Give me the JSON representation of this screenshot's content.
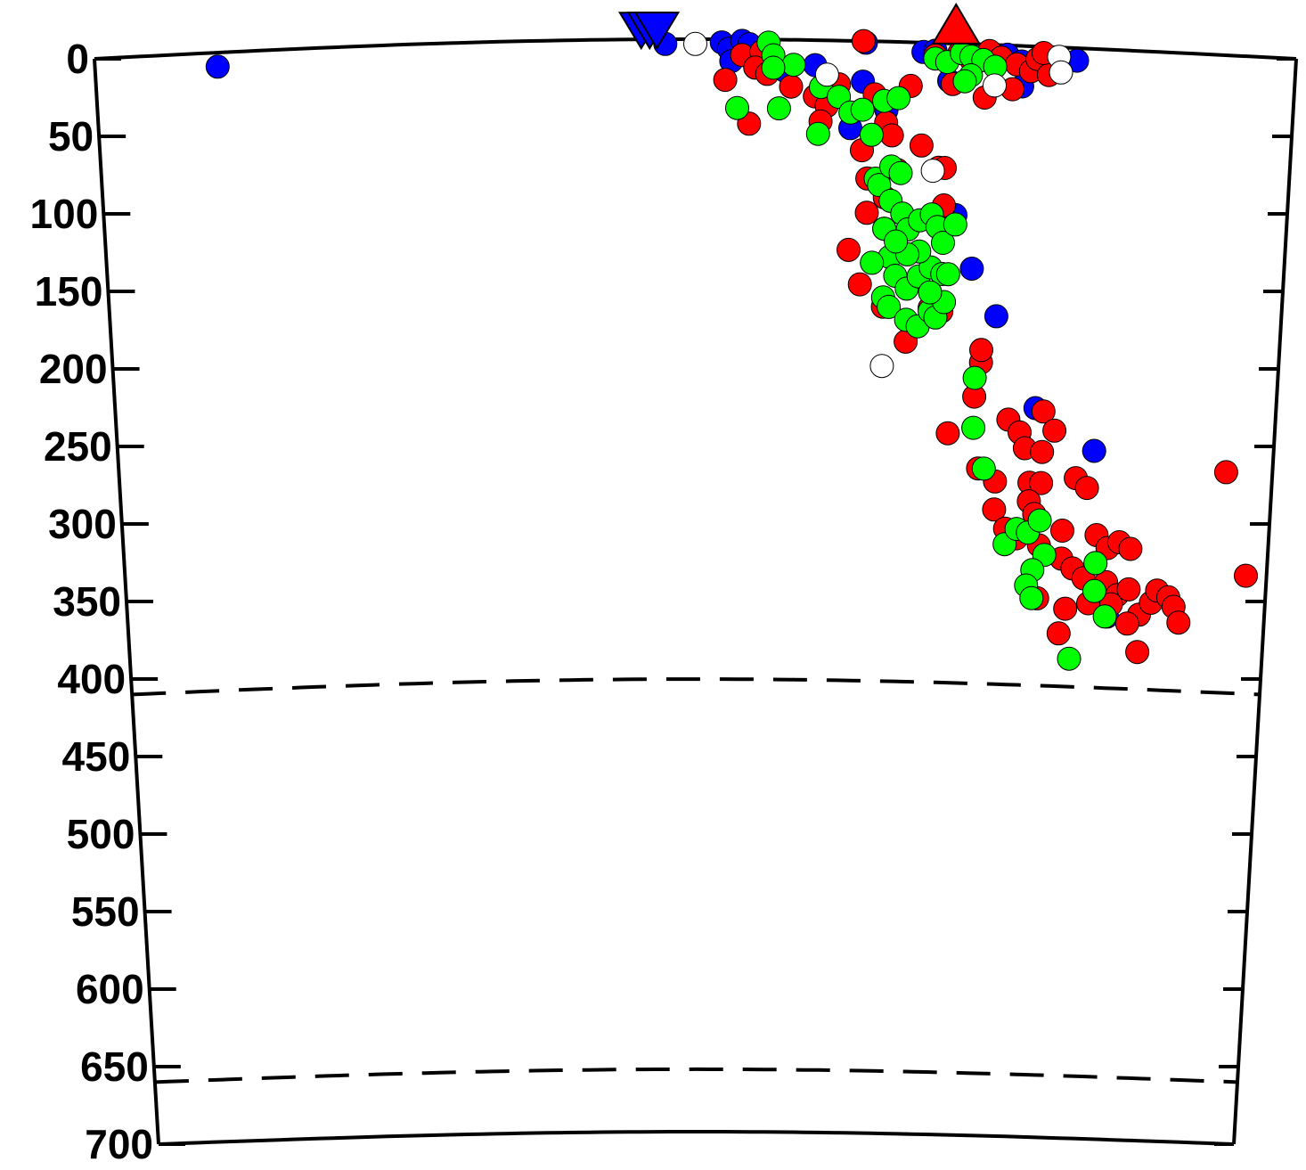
{
  "chart_data": {
    "type": "scatter",
    "title": "",
    "xlabel": "",
    "ylabel": "",
    "y_axis_inverted": true,
    "ylim": [
      0,
      700
    ],
    "xlim": [
      0,
      1
    ],
    "grid": false,
    "y_tick_labels": [
      "0",
      "50",
      "100",
      "150",
      "200",
      "250",
      "300",
      "350",
      "400",
      "450",
      "500",
      "550",
      "600",
      "650",
      "700"
    ],
    "discontinuities_depth": [
      410,
      660
    ],
    "markers": [
      {
        "symbol": "inverted-triangle",
        "color": "#0000ff",
        "x": [
          0.455,
          0.462,
          0.468
        ],
        "y": [
          0,
          0,
          0
        ]
      },
      {
        "symbol": "triangle",
        "color": "#ff0000",
        "x": [
          0.717
        ],
        "y": [
          0
        ]
      }
    ],
    "series": [
      {
        "color": "#0000ff",
        "points": [
          [
            0.102,
            9
          ],
          [
            0.475,
            3
          ],
          [
            0.522,
            2
          ],
          [
            0.528,
            6
          ],
          [
            0.539,
            1
          ],
          [
            0.545,
            3
          ],
          [
            0.53,
            14
          ],
          [
            0.55,
            18
          ],
          [
            0.6,
            16
          ],
          [
            0.575,
            20
          ],
          [
            0.642,
            1
          ],
          [
            0.66,
            44
          ],
          [
            0.63,
            56
          ],
          [
            0.69,
            6
          ],
          [
            0.7,
            5
          ],
          [
            0.712,
            24
          ],
          [
            0.76,
            6
          ],
          [
            0.772,
            10
          ],
          [
            0.773,
            26
          ],
          [
            0.818,
            8
          ],
          [
            0.64,
            26
          ],
          [
            0.72,
            110
          ],
          [
            0.735,
            144
          ],
          [
            0.757,
            174
          ],
          [
            0.793,
            232
          ],
          [
            0.845,
            258
          ],
          [
            0.862,
            364
          ]
        ]
      },
      {
        "color": "#ff0000",
        "points": [
          [
            0.539,
            10
          ],
          [
            0.555,
            8
          ],
          [
            0.55,
            18
          ],
          [
            0.525,
            26
          ],
          [
            0.56,
            22
          ],
          [
            0.58,
            30
          ],
          [
            0.6,
            36
          ],
          [
            0.62,
            28
          ],
          [
            0.64,
            0
          ],
          [
            0.61,
            42
          ],
          [
            0.605,
            52
          ],
          [
            0.545,
            54
          ],
          [
            0.65,
            34
          ],
          [
            0.68,
            28
          ],
          [
            0.66,
            52
          ],
          [
            0.665,
            60
          ],
          [
            0.64,
            70
          ],
          [
            0.67,
            82
          ],
          [
            0.69,
            66
          ],
          [
            0.705,
            80
          ],
          [
            0.71,
            80
          ],
          [
            0.645,
            88
          ],
          [
            0.66,
            100
          ],
          [
            0.71,
            104
          ],
          [
            0.645,
            110
          ],
          [
            0.66,
            120
          ],
          [
            0.63,
            134
          ],
          [
            0.64,
            156
          ],
          [
            0.66,
            170
          ],
          [
            0.7,
            170
          ],
          [
            0.71,
            172
          ],
          [
            0.68,
            192
          ],
          [
            0.7,
            8
          ],
          [
            0.72,
            6
          ],
          [
            0.73,
            10
          ],
          [
            0.745,
            4
          ],
          [
            0.755,
            8
          ],
          [
            0.768,
            12
          ],
          [
            0.78,
            16
          ],
          [
            0.785,
            8
          ],
          [
            0.742,
            34
          ],
          [
            0.715,
            26
          ],
          [
            0.765,
            28
          ],
          [
            0.795,
            18
          ],
          [
            0.79,
            4
          ],
          [
            0.745,
            204
          ],
          [
            0.745,
            196
          ],
          [
            0.74,
            226
          ],
          [
            0.718,
            250
          ],
          [
            0.745,
            272
          ],
          [
            0.76,
            280
          ],
          [
            0.76,
            298
          ],
          [
            0.77,
            240
          ],
          [
            0.78,
            248
          ],
          [
            0.785,
            258
          ],
          [
            0.79,
            280
          ],
          [
            0.8,
            234
          ],
          [
            0.8,
            260
          ],
          [
            0.8,
            280
          ],
          [
            0.79,
            292
          ],
          [
            0.795,
            300
          ],
          [
            0.81,
            246
          ],
          [
            0.83,
            276
          ],
          [
            0.84,
            282
          ],
          [
            0.77,
            310
          ],
          [
            0.78,
            316
          ],
          [
            0.8,
            320
          ],
          [
            0.82,
            310
          ],
          [
            0.82,
            328
          ],
          [
            0.83,
            334
          ],
          [
            0.84,
            340
          ],
          [
            0.85,
            330
          ],
          [
            0.85,
            312
          ],
          [
            0.86,
            320
          ],
          [
            0.87,
            316
          ],
          [
            0.88,
            320
          ],
          [
            0.86,
            342
          ],
          [
            0.87,
            350
          ],
          [
            0.88,
            346
          ],
          [
            0.865,
            356
          ],
          [
            0.8,
            354
          ],
          [
            0.825,
            360
          ],
          [
            0.82,
            376
          ],
          [
            0.845,
            356
          ],
          [
            0.89,
            362
          ],
          [
            0.9,
            354
          ],
          [
            0.905,
            346
          ],
          [
            0.915,
            350
          ],
          [
            0.92,
            356
          ],
          [
            0.925,
            366
          ],
          [
            0.88,
            368
          ],
          [
            0.89,
            386
          ],
          [
            0.96,
            268
          ],
          [
            0.982,
            334
          ]
        ]
      },
      {
        "color": "#00ff00",
        "points": [
          [
            0.561,
            2
          ],
          [
            0.565,
            10
          ],
          [
            0.582,
            16
          ],
          [
            0.565,
            18
          ],
          [
            0.605,
            30
          ],
          [
            0.62,
            36
          ],
          [
            0.63,
            46
          ],
          [
            0.658,
            38
          ],
          [
            0.67,
            36
          ],
          [
            0.64,
            44
          ],
          [
            0.648,
            60
          ],
          [
            0.7,
            10
          ],
          [
            0.71,
            12
          ],
          [
            0.722,
            6
          ],
          [
            0.73,
            8
          ],
          [
            0.74,
            10
          ],
          [
            0.73,
            20
          ],
          [
            0.75,
            14
          ],
          [
            0.725,
            24
          ],
          [
            0.535,
            44
          ],
          [
            0.57,
            44
          ],
          [
            0.603,
            60
          ],
          [
            0.652,
            88
          ],
          [
            0.655,
            92
          ],
          [
            0.665,
            80
          ],
          [
            0.673,
            84
          ],
          [
            0.665,
            102
          ],
          [
            0.675,
            110
          ],
          [
            0.68,
            120
          ],
          [
            0.69,
            114
          ],
          [
            0.7,
            110
          ],
          [
            0.705,
            118
          ],
          [
            0.71,
            128
          ],
          [
            0.66,
            120
          ],
          [
            0.665,
            138
          ],
          [
            0.67,
            150
          ],
          [
            0.68,
            158
          ],
          [
            0.69,
            150
          ],
          [
            0.7,
            144
          ],
          [
            0.71,
            148
          ],
          [
            0.66,
            164
          ],
          [
            0.665,
            170
          ],
          [
            0.68,
            178
          ],
          [
            0.69,
            182
          ],
          [
            0.7,
            172
          ],
          [
            0.705,
            176
          ],
          [
            0.712,
            166
          ],
          [
            0.715,
            148
          ],
          [
            0.7,
            160
          ],
          [
            0.69,
            134
          ],
          [
            0.68,
            136
          ],
          [
            0.65,
            142
          ],
          [
            0.67,
            128
          ],
          [
            0.72,
            116
          ],
          [
            0.74,
            214
          ],
          [
            0.74,
            246
          ],
          [
            0.75,
            272
          ],
          [
            0.77,
            320
          ],
          [
            0.78,
            310
          ],
          [
            0.79,
            312
          ],
          [
            0.8,
            304
          ],
          [
            0.805,
            326
          ],
          [
            0.795,
            336
          ],
          [
            0.79,
            346
          ],
          [
            0.795,
            354
          ],
          [
            0.85,
            330
          ],
          [
            0.85,
            348
          ],
          [
            0.86,
            364
          ],
          [
            0.83,
            392
          ]
        ]
      },
      {
        "color": "#ffffff",
        "points": [
          [
            0.5,
            3
          ],
          [
            0.61,
            22
          ],
          [
            0.75,
            26
          ],
          [
            0.803,
            6
          ],
          [
            0.805,
            16
          ],
          [
            0.7,
            82
          ],
          [
            0.66,
            208
          ]
        ]
      }
    ]
  }
}
